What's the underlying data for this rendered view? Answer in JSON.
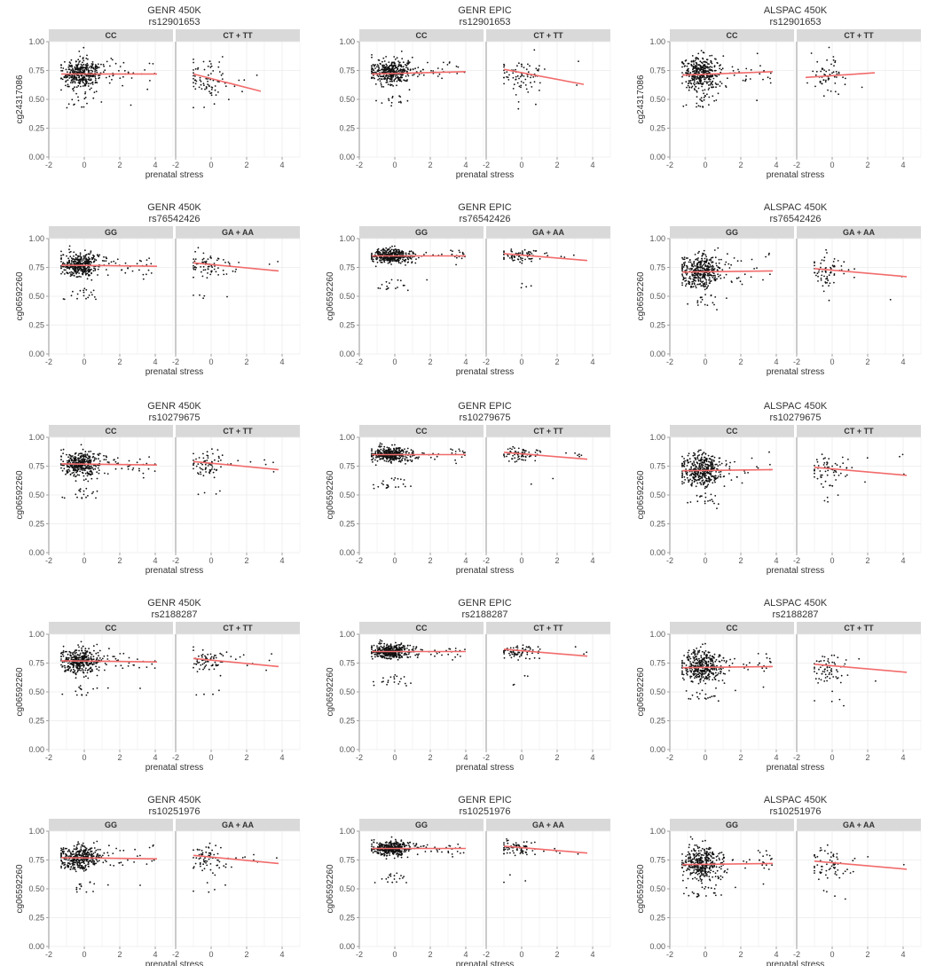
{
  "figure": {
    "x_axis_label": "prenatal stress",
    "colors": {
      "points": "#111111",
      "regression_line": "#f26b6b",
      "strip_bg": "#d9d9d9",
      "grid": "#ebebeb",
      "panel_border": "#a8a8a8"
    }
  },
  "chart_data": [
    {
      "type": "scatter",
      "row": 0,
      "col": 0,
      "title": "GENR 450K",
      "subtitle": "rs12901653",
      "ylabel": "cg24317086",
      "xlabel": "prenatal stress",
      "xlim": [
        -2,
        5
      ],
      "ylim": [
        0,
        1
      ],
      "x_ticks": [
        -2,
        0,
        2,
        4
      ],
      "y_ticks": [
        "0.00",
        "0.25",
        "0.50",
        "0.75",
        "1.00"
      ],
      "grid": true,
      "facets": [
        {
          "label": "CC",
          "x_range": [
            -1.3,
            4.1
          ],
          "point_center": 0.72,
          "point_spread": 0.06,
          "n_points": 420,
          "line": [
            [
              -1.3,
              0.72
            ],
            [
              4.1,
              0.72
            ]
          ]
        },
        {
          "label": "CT + TT",
          "x_range": [
            -1.0,
            2.8
          ],
          "point_center": 0.68,
          "point_spread": 0.08,
          "n_points": 80,
          "line": [
            [
              -1.0,
              0.72
            ],
            [
              2.8,
              0.57
            ]
          ]
        }
      ]
    },
    {
      "type": "scatter",
      "row": 0,
      "col": 1,
      "title": "GENR EPIC",
      "subtitle": "rs12901653",
      "ylabel": "",
      "xlabel": "prenatal stress",
      "xlim": [
        -2,
        5
      ],
      "ylim": [
        0,
        1
      ],
      "x_ticks": [
        -2,
        0,
        2,
        4
      ],
      "y_ticks": [
        "0.00",
        "0.25",
        "0.50",
        "0.75",
        "1.00"
      ],
      "grid": true,
      "facets": [
        {
          "label": "CC",
          "x_range": [
            -1.3,
            4.0
          ],
          "point_center": 0.74,
          "point_spread": 0.05,
          "n_points": 420,
          "line": [
            [
              -1.3,
              0.72
            ],
            [
              4.0,
              0.74
            ]
          ]
        },
        {
          "label": "CT + TT",
          "x_range": [
            -1.0,
            3.5
          ],
          "point_center": 0.7,
          "point_spread": 0.08,
          "n_points": 80,
          "line": [
            [
              -1.0,
              0.76
            ],
            [
              3.5,
              0.63
            ]
          ]
        }
      ]
    },
    {
      "type": "scatter",
      "row": 0,
      "col": 2,
      "title": "ALSPAC 450K",
      "subtitle": "rs12901653",
      "ylabel": "cg24317086",
      "xlabel": "prenatal stress",
      "xlim": [
        -2,
        5
      ],
      "ylim": [
        0,
        1
      ],
      "x_ticks": [
        -2,
        0,
        2,
        4
      ],
      "y_ticks": [
        "0.00",
        "0.25",
        "0.50",
        "0.75",
        "1.00"
      ],
      "grid": true,
      "facets": [
        {
          "label": "CC",
          "x_range": [
            -1.3,
            3.8
          ],
          "point_center": 0.73,
          "point_spread": 0.07,
          "n_points": 420,
          "line": [
            [
              -1.3,
              0.71
            ],
            [
              3.8,
              0.74
            ]
          ]
        },
        {
          "label": "CT + TT",
          "x_range": [
            -1.5,
            2.4
          ],
          "point_center": 0.7,
          "point_spread": 0.08,
          "n_points": 60,
          "line": [
            [
              -1.5,
              0.69
            ],
            [
              2.4,
              0.73
            ]
          ]
        }
      ]
    },
    {
      "type": "scatter",
      "row": 1,
      "col": 0,
      "title": "GENR 450K",
      "subtitle": "rs76542426",
      "ylabel": "cg06592260",
      "xlabel": "prenatal stress",
      "xlim": [
        -2,
        5
      ],
      "ylim": [
        0,
        1
      ],
      "x_ticks": [
        -2,
        0,
        2,
        4
      ],
      "y_ticks": [
        "0.00",
        "0.25",
        "0.50",
        "0.75",
        "1.00"
      ],
      "grid": true,
      "facets": [
        {
          "label": "GG",
          "x_range": [
            -1.3,
            4.1
          ],
          "point_center": 0.77,
          "point_spread": 0.05,
          "n_points": 420,
          "line": [
            [
              -1.3,
              0.77
            ],
            [
              4.1,
              0.76
            ]
          ]
        },
        {
          "label": "GA + AA",
          "x_range": [
            -1.0,
            3.8
          ],
          "point_center": 0.77,
          "point_spread": 0.05,
          "n_points": 80,
          "line": [
            [
              -1.0,
              0.79
            ],
            [
              3.8,
              0.72
            ]
          ]
        }
      ]
    },
    {
      "type": "scatter",
      "row": 1,
      "col": 1,
      "title": "GENR EPIC",
      "subtitle": "rs76542426",
      "ylabel": "cg06592260",
      "xlabel": "prenatal stress",
      "xlim": [
        -2,
        5
      ],
      "ylim": [
        0,
        1
      ],
      "x_ticks": [
        -2,
        0,
        2,
        4
      ],
      "y_ticks": [
        "0.00",
        "0.25",
        "0.50",
        "0.75",
        "1.00"
      ],
      "grid": true,
      "facets": [
        {
          "label": "GG",
          "x_range": [
            -1.3,
            4.0
          ],
          "point_center": 0.85,
          "point_spread": 0.03,
          "n_points": 420,
          "line": [
            [
              -1.3,
              0.85
            ],
            [
              4.0,
              0.85
            ]
          ]
        },
        {
          "label": "GA + AA",
          "x_range": [
            -1.0,
            3.7
          ],
          "point_center": 0.85,
          "point_spread": 0.03,
          "n_points": 80,
          "line": [
            [
              -1.0,
              0.87
            ],
            [
              3.7,
              0.81
            ]
          ]
        }
      ]
    },
    {
      "type": "scatter",
      "row": 1,
      "col": 2,
      "title": "ALSPAC 450K",
      "subtitle": "rs76542426",
      "ylabel": "cg06592260",
      "xlabel": "prenatal stress",
      "xlim": [
        -2,
        5
      ],
      "ylim": [
        0,
        1
      ],
      "x_ticks": [
        -2,
        0,
        2,
        4
      ],
      "y_ticks": [
        "0.00",
        "0.25",
        "0.50",
        "0.75",
        "1.00"
      ],
      "grid": true,
      "facets": [
        {
          "label": "GG",
          "x_range": [
            -1.3,
            3.8
          ],
          "point_center": 0.72,
          "point_spread": 0.07,
          "n_points": 420,
          "line": [
            [
              -1.3,
              0.71
            ],
            [
              3.8,
              0.72
            ]
          ]
        },
        {
          "label": "GA + AA",
          "x_range": [
            -1.0,
            4.2
          ],
          "point_center": 0.71,
          "point_spread": 0.07,
          "n_points": 70,
          "line": [
            [
              -1.0,
              0.74
            ],
            [
              4.2,
              0.67
            ]
          ]
        }
      ]
    },
    {
      "type": "scatter",
      "row": 2,
      "col": 0,
      "title": "GENR 450K",
      "subtitle": "rs10279675",
      "ylabel": "cg06592260",
      "xlabel": "prenatal stress",
      "xlim": [
        -2,
        5
      ],
      "ylim": [
        0,
        1
      ],
      "x_ticks": [
        -2,
        0,
        2,
        4
      ],
      "y_ticks": [
        "0.00",
        "0.25",
        "0.50",
        "0.75",
        "1.00"
      ],
      "grid": true,
      "facets": [
        {
          "label": "CC",
          "x_range": [
            -1.3,
            4.1
          ],
          "point_center": 0.77,
          "point_spread": 0.05,
          "n_points": 420,
          "line": [
            [
              -1.3,
              0.77
            ],
            [
              4.1,
              0.76
            ]
          ]
        },
        {
          "label": "CT + TT",
          "x_range": [
            -1.0,
            3.8
          ],
          "point_center": 0.77,
          "point_spread": 0.05,
          "n_points": 80,
          "line": [
            [
              -1.0,
              0.79
            ],
            [
              3.8,
              0.72
            ]
          ]
        }
      ]
    },
    {
      "type": "scatter",
      "row": 2,
      "col": 1,
      "title": "GENR EPIC",
      "subtitle": "rs10279675",
      "ylabel": "cg06592260",
      "xlabel": "prenatal stress",
      "xlim": [
        -2,
        5
      ],
      "ylim": [
        0,
        1
      ],
      "x_ticks": [
        -2,
        0,
        2,
        4
      ],
      "y_ticks": [
        "0.00",
        "0.25",
        "0.50",
        "0.75",
        "1.00"
      ],
      "grid": true,
      "facets": [
        {
          "label": "CC",
          "x_range": [
            -1.3,
            4.0
          ],
          "point_center": 0.85,
          "point_spread": 0.03,
          "n_points": 420,
          "line": [
            [
              -1.3,
              0.85
            ],
            [
              4.0,
              0.85
            ]
          ]
        },
        {
          "label": "CT + TT",
          "x_range": [
            -1.0,
            3.7
          ],
          "point_center": 0.85,
          "point_spread": 0.03,
          "n_points": 80,
          "line": [
            [
              -1.0,
              0.87
            ],
            [
              3.7,
              0.81
            ]
          ]
        }
      ]
    },
    {
      "type": "scatter",
      "row": 2,
      "col": 2,
      "title": "ALSPAC 450K",
      "subtitle": "rs10279675",
      "ylabel": "cg06592260",
      "xlabel": "prenatal stress",
      "xlim": [
        -2,
        5
      ],
      "ylim": [
        0,
        1
      ],
      "x_ticks": [
        -2,
        0,
        2,
        4
      ],
      "y_ticks": [
        "0.00",
        "0.25",
        "0.50",
        "0.75",
        "1.00"
      ],
      "grid": true,
      "facets": [
        {
          "label": "CC",
          "x_range": [
            -1.3,
            3.8
          ],
          "point_center": 0.72,
          "point_spread": 0.07,
          "n_points": 420,
          "line": [
            [
              -1.3,
              0.71
            ],
            [
              3.8,
              0.72
            ]
          ]
        },
        {
          "label": "CT + TT",
          "x_range": [
            -1.0,
            4.2
          ],
          "point_center": 0.71,
          "point_spread": 0.07,
          "n_points": 70,
          "line": [
            [
              -1.0,
              0.74
            ],
            [
              4.2,
              0.67
            ]
          ]
        }
      ]
    },
    {
      "type": "scatter",
      "row": 3,
      "col": 0,
      "title": "GENR 450K",
      "subtitle": "rs2188287",
      "ylabel": "cg06592260",
      "xlabel": "prenatal stress",
      "xlim": [
        -2,
        5
      ],
      "ylim": [
        0,
        1
      ],
      "x_ticks": [
        -2,
        0,
        2,
        4
      ],
      "y_ticks": [
        "0.00",
        "0.25",
        "0.50",
        "0.75",
        "1.00"
      ],
      "grid": true,
      "facets": [
        {
          "label": "CC",
          "x_range": [
            -1.3,
            4.1
          ],
          "point_center": 0.77,
          "point_spread": 0.05,
          "n_points": 420,
          "line": [
            [
              -1.3,
              0.77
            ],
            [
              4.1,
              0.76
            ]
          ]
        },
        {
          "label": "CT + TT",
          "x_range": [
            -1.0,
            3.8
          ],
          "point_center": 0.77,
          "point_spread": 0.05,
          "n_points": 80,
          "line": [
            [
              -1.0,
              0.79
            ],
            [
              3.8,
              0.72
            ]
          ]
        }
      ]
    },
    {
      "type": "scatter",
      "row": 3,
      "col": 1,
      "title": "GENR EPIC",
      "subtitle": "rs2188287",
      "ylabel": "cg06592260",
      "xlabel": "prenatal stress",
      "xlim": [
        -2,
        5
      ],
      "ylim": [
        0,
        1
      ],
      "x_ticks": [
        -2,
        0,
        2,
        4
      ],
      "y_ticks": [
        "0.00",
        "0.25",
        "0.50",
        "0.75",
        "1.00"
      ],
      "grid": true,
      "facets": [
        {
          "label": "CC",
          "x_range": [
            -1.3,
            4.0
          ],
          "point_center": 0.85,
          "point_spread": 0.03,
          "n_points": 420,
          "line": [
            [
              -1.3,
              0.85
            ],
            [
              4.0,
              0.85
            ]
          ]
        },
        {
          "label": "CT + TT",
          "x_range": [
            -1.0,
            3.7
          ],
          "point_center": 0.85,
          "point_spread": 0.03,
          "n_points": 80,
          "line": [
            [
              -1.0,
              0.87
            ],
            [
              3.7,
              0.81
            ]
          ]
        }
      ]
    },
    {
      "type": "scatter",
      "row": 3,
      "col": 2,
      "title": "ALSPAC 450K",
      "subtitle": "rs2188287",
      "ylabel": "cg06592260",
      "xlabel": "prenatal stress",
      "xlim": [
        -2,
        5
      ],
      "ylim": [
        0,
        1
      ],
      "x_ticks": [
        -2,
        0,
        2,
        4
      ],
      "y_ticks": [
        "0.00",
        "0.25",
        "0.50",
        "0.75",
        "1.00"
      ],
      "grid": true,
      "facets": [
        {
          "label": "CC",
          "x_range": [
            -1.3,
            3.8
          ],
          "point_center": 0.72,
          "point_spread": 0.07,
          "n_points": 420,
          "line": [
            [
              -1.3,
              0.71
            ],
            [
              3.8,
              0.72
            ]
          ]
        },
        {
          "label": "CT + TT",
          "x_range": [
            -1.0,
            4.2
          ],
          "point_center": 0.71,
          "point_spread": 0.07,
          "n_points": 70,
          "line": [
            [
              -1.0,
              0.74
            ],
            [
              4.2,
              0.67
            ]
          ]
        }
      ]
    },
    {
      "type": "scatter",
      "row": 4,
      "col": 0,
      "title": "GENR 450K",
      "subtitle": "rs10251976",
      "ylabel": "cg06592260",
      "xlabel": "prenatal stress",
      "xlim": [
        -2,
        5
      ],
      "ylim": [
        0,
        1
      ],
      "x_ticks": [
        -2,
        0,
        2,
        4
      ],
      "y_ticks": [
        "0.00",
        "0.25",
        "0.50",
        "0.75",
        "1.00"
      ],
      "grid": true,
      "facets": [
        {
          "label": "GG",
          "x_range": [
            -1.3,
            4.1
          ],
          "point_center": 0.77,
          "point_spread": 0.05,
          "n_points": 420,
          "line": [
            [
              -1.3,
              0.77
            ],
            [
              4.1,
              0.76
            ]
          ]
        },
        {
          "label": "GA + AA",
          "x_range": [
            -1.0,
            3.8
          ],
          "point_center": 0.77,
          "point_spread": 0.05,
          "n_points": 80,
          "line": [
            [
              -1.0,
              0.79
            ],
            [
              3.8,
              0.72
            ]
          ]
        }
      ]
    },
    {
      "type": "scatter",
      "row": 4,
      "col": 1,
      "title": "GENR EPIC",
      "subtitle": "rs10251976",
      "ylabel": "cg06592260",
      "xlabel": "prenatal stress",
      "xlim": [
        -2,
        5
      ],
      "ylim": [
        0,
        1
      ],
      "x_ticks": [
        -2,
        0,
        2,
        4
      ],
      "y_ticks": [
        "0.00",
        "0.25",
        "0.50",
        "0.75",
        "1.00"
      ],
      "grid": true,
      "facets": [
        {
          "label": "GG",
          "x_range": [
            -1.3,
            4.0
          ],
          "point_center": 0.85,
          "point_spread": 0.03,
          "n_points": 420,
          "line": [
            [
              -1.3,
              0.85
            ],
            [
              4.0,
              0.85
            ]
          ]
        },
        {
          "label": "GA + AA",
          "x_range": [
            -1.0,
            3.7
          ],
          "point_center": 0.85,
          "point_spread": 0.03,
          "n_points": 80,
          "line": [
            [
              -1.0,
              0.87
            ],
            [
              3.7,
              0.81
            ]
          ]
        }
      ]
    },
    {
      "type": "scatter",
      "row": 4,
      "col": 2,
      "title": "ALSPAC 450K",
      "subtitle": "rs10251976",
      "ylabel": "cg06592260",
      "xlabel": "prenatal stress",
      "xlim": [
        -2,
        5
      ],
      "ylim": [
        0,
        1
      ],
      "x_ticks": [
        -2,
        0,
        2,
        4
      ],
      "y_ticks": [
        "0.00",
        "0.25",
        "0.50",
        "0.75",
        "1.00"
      ],
      "grid": true,
      "facets": [
        {
          "label": "GG",
          "x_range": [
            -1.3,
            3.8
          ],
          "point_center": 0.72,
          "point_spread": 0.07,
          "n_points": 420,
          "line": [
            [
              -1.3,
              0.71
            ],
            [
              3.8,
              0.72
            ]
          ]
        },
        {
          "label": "GA + AA",
          "x_range": [
            -1.0,
            4.2
          ],
          "point_center": 0.71,
          "point_spread": 0.07,
          "n_points": 70,
          "line": [
            [
              -1.0,
              0.74
            ],
            [
              4.2,
              0.67
            ]
          ]
        }
      ]
    }
  ]
}
